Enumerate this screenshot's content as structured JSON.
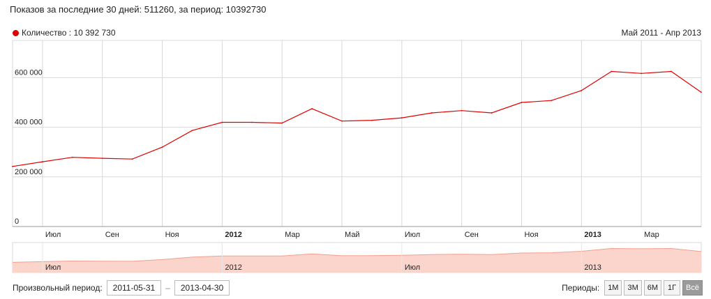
{
  "summary": "Показов за последние 30 дней: 511260, за период: 10392730",
  "legend": {
    "label": "Количество : 10 392 730",
    "color": "#e00000"
  },
  "range_label": "Май 2011 - Апр 2013",
  "footer": {
    "period_label": "Произвольный период:",
    "start_date": "2011-05-31",
    "end_date": "2013-04-30",
    "periods_label": "Периоды:",
    "buttons": [
      "1М",
      "3М",
      "6М",
      "1Г",
      "Всё"
    ],
    "active_button": "Всё"
  },
  "colors": {
    "line": "#e00000",
    "navigator_fill": "#fbd4cc",
    "navigator_line": "#f2a08f",
    "grid": "#d8d8d8"
  },
  "chart_data": {
    "type": "line",
    "title": "",
    "xlabel": "",
    "ylabel": "",
    "ylim": [
      0,
      750000
    ],
    "y_ticks": [
      {
        "label": "0",
        "value": 0
      },
      {
        "label": "200 000",
        "value": 200000
      },
      {
        "label": "400 000",
        "value": 400000
      },
      {
        "label": "600 000",
        "value": 600000
      }
    ],
    "x_ticks": [
      {
        "label": "Июл",
        "index": 1,
        "bold": false
      },
      {
        "label": "Сен",
        "index": 3,
        "bold": false
      },
      {
        "label": "Ноя",
        "index": 5,
        "bold": false
      },
      {
        "label": "2012",
        "index": 7,
        "bold": true
      },
      {
        "label": "Мар",
        "index": 9,
        "bold": false
      },
      {
        "label": "Май",
        "index": 11,
        "bold": false
      },
      {
        "label": "Июл",
        "index": 13,
        "bold": false
      },
      {
        "label": "Сен",
        "index": 15,
        "bold": false
      },
      {
        "label": "Ноя",
        "index": 17,
        "bold": false
      },
      {
        "label": "2013",
        "index": 19,
        "bold": true
      },
      {
        "label": "Мар",
        "index": 21,
        "bold": false
      }
    ],
    "navigator_labels": [
      {
        "label": "Июл",
        "index": 1
      },
      {
        "label": "2012",
        "index": 7
      },
      {
        "label": "Июл",
        "index": 13
      },
      {
        "label": "2013",
        "index": 19
      }
    ],
    "series": [
      {
        "name": "Количество",
        "x": [
          "2011-05",
          "2011-06",
          "2011-07",
          "2011-08",
          "2011-09",
          "2011-10",
          "2011-11",
          "2011-12",
          "2012-01",
          "2012-02",
          "2012-03",
          "2012-04",
          "2012-05",
          "2012-06",
          "2012-07",
          "2012-08",
          "2012-09",
          "2012-10",
          "2012-11",
          "2012-12",
          "2013-01",
          "2013-02",
          "2013-03",
          "2013-04"
        ],
        "values": [
          242000,
          261000,
          279000,
          275000,
          272000,
          320000,
          387000,
          420000,
          420000,
          417000,
          475000,
          425000,
          428000,
          438000,
          458000,
          467000,
          458000,
          500000,
          508000,
          548000,
          625000,
          617000,
          625000,
          541000
        ]
      }
    ],
    "grid": true,
    "legend_position": "top-left"
  }
}
